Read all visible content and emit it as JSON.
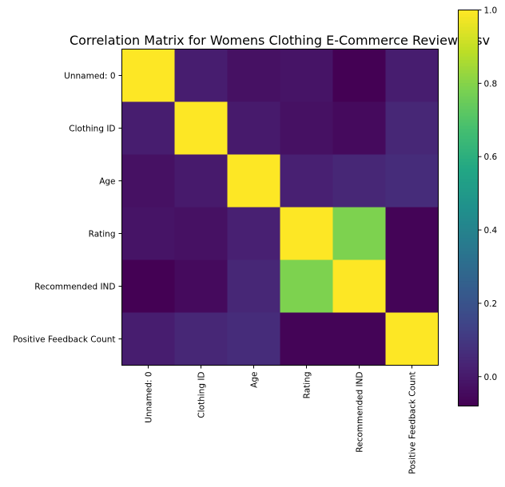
{
  "chart_data": {
    "type": "heatmap",
    "title": "Correlation Matrix for Womens Clothing E-Commerce Reviews.csv",
    "xlabel": "",
    "ylabel": "",
    "colormap": "viridis",
    "row_labels": [
      "Unnamed: 0",
      "Clothing ID",
      "Age",
      "Rating",
      "Recommended IND",
      "Positive Feedback Count"
    ],
    "col_labels": [
      "Unnamed: 0",
      "Clothing ID",
      "Age",
      "Rating",
      "Recommended IND",
      "Positive Feedback Count"
    ],
    "values": [
      [
        1.0,
        0.01,
        -0.03,
        -0.02,
        -0.08,
        0.01
      ],
      [
        0.01,
        1.0,
        0.0,
        -0.03,
        -0.05,
        0.04
      ],
      [
        -0.03,
        0.0,
        1.0,
        0.02,
        0.04,
        0.06
      ],
      [
        -0.02,
        -0.03,
        0.02,
        1.0,
        0.79,
        -0.07
      ],
      [
        -0.08,
        -0.05,
        0.04,
        0.79,
        1.0,
        -0.07
      ],
      [
        0.01,
        0.04,
        0.06,
        -0.07,
        -0.07,
        1.0
      ]
    ],
    "colorbar": {
      "min": -0.08,
      "max": 1.0,
      "ticks": [
        0.0,
        0.2,
        0.4,
        0.6,
        0.8,
        1.0
      ],
      "tick_labels": [
        "0.0",
        "0.2",
        "0.4",
        "0.6",
        "0.8",
        "1.0"
      ]
    }
  }
}
